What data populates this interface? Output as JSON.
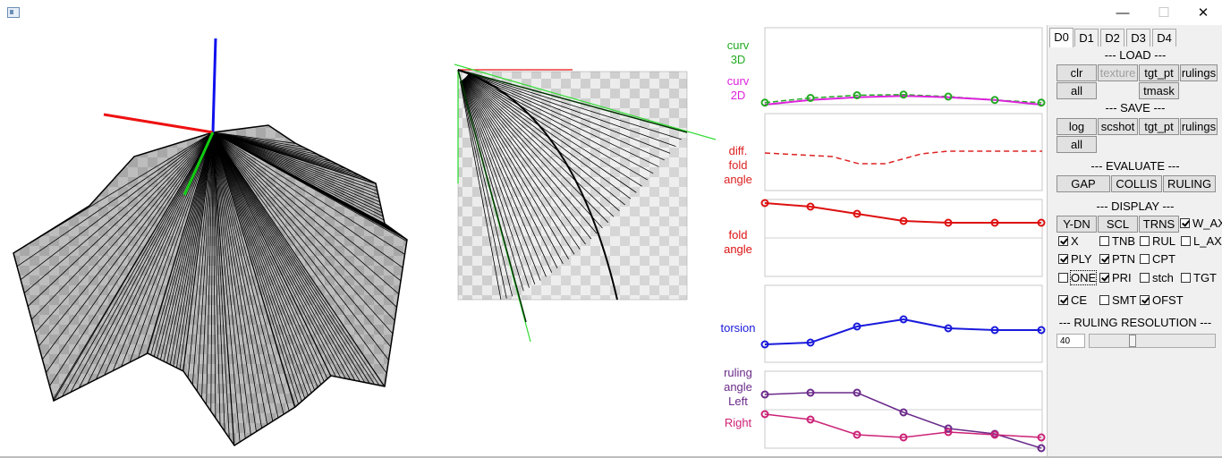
{
  "window": {
    "minimize": "—",
    "maximize": "☐",
    "close": "✕"
  },
  "plots": {
    "curv3d_label": "curv\n3D",
    "curv2d_label": "curv\n2D",
    "diff_label": "diff.\nfold\nangle",
    "fold_label": "fold\nangle",
    "torsion_label": "torsion",
    "ruling_label": "ruling\nangle\nLeft",
    "right_label": "Right",
    "colors": {
      "curv3d": "#22aa22",
      "curv2d": "#dd22dd",
      "diff": "#dd2222",
      "fold": "#dd1111",
      "torsion": "#1a1adc",
      "left": "#6a2a8a",
      "right": "#cc2277"
    },
    "series": {
      "curv3d": [
        3,
        10,
        14,
        15,
        12,
        7,
        3
      ],
      "curv2d": [
        0,
        7,
        11,
        13,
        11,
        7,
        0
      ],
      "fold": [
        82,
        78,
        70,
        62,
        60,
        60,
        60
      ],
      "torsion": [
        20,
        22,
        40,
        48,
        38,
        36,
        36
      ],
      "left": [
        60,
        62,
        62,
        40,
        22,
        16,
        0
      ],
      "right": [
        38,
        32,
        15,
        12,
        18,
        15,
        12
      ]
    }
  },
  "panel": {
    "tabs": [
      "D0",
      "D1",
      "D2",
      "D3",
      "D4"
    ],
    "load_header": "--- LOAD ---",
    "load_buttons": [
      "clr",
      "texture",
      "tgt_pt",
      "rulings"
    ],
    "load_all": "all",
    "load_tmask": "tmask",
    "save_header": "--- SAVE ---",
    "save_buttons": [
      "log",
      "scshot",
      "tgt_pt",
      "rulings"
    ],
    "save_all": "all",
    "evaluate_header": "--- EVALUATE ---",
    "evaluate_buttons": [
      "GAP",
      "COLLIS",
      "RULING"
    ],
    "display_header": "--- DISPLAY ---",
    "display_buttons": [
      "Y-DN",
      "SCL",
      "TRNS"
    ],
    "checks": {
      "w_ax": "W_AX",
      "x": "X",
      "tnb": "TNB",
      "rul": "RUL",
      "l_ax": "L_AX",
      "ply": "PLY",
      "ptn": "PTN",
      "cpt": "CPT",
      "one": "ONE",
      "pri": "PRI",
      "stch": "stch",
      "tgt": "TGT",
      "ce": "CE",
      "smt": "SMT",
      "ofst": "OFST"
    },
    "ruling_res_header": "--- RULING RESOLUTION ---",
    "ruling_res_value": "40"
  }
}
